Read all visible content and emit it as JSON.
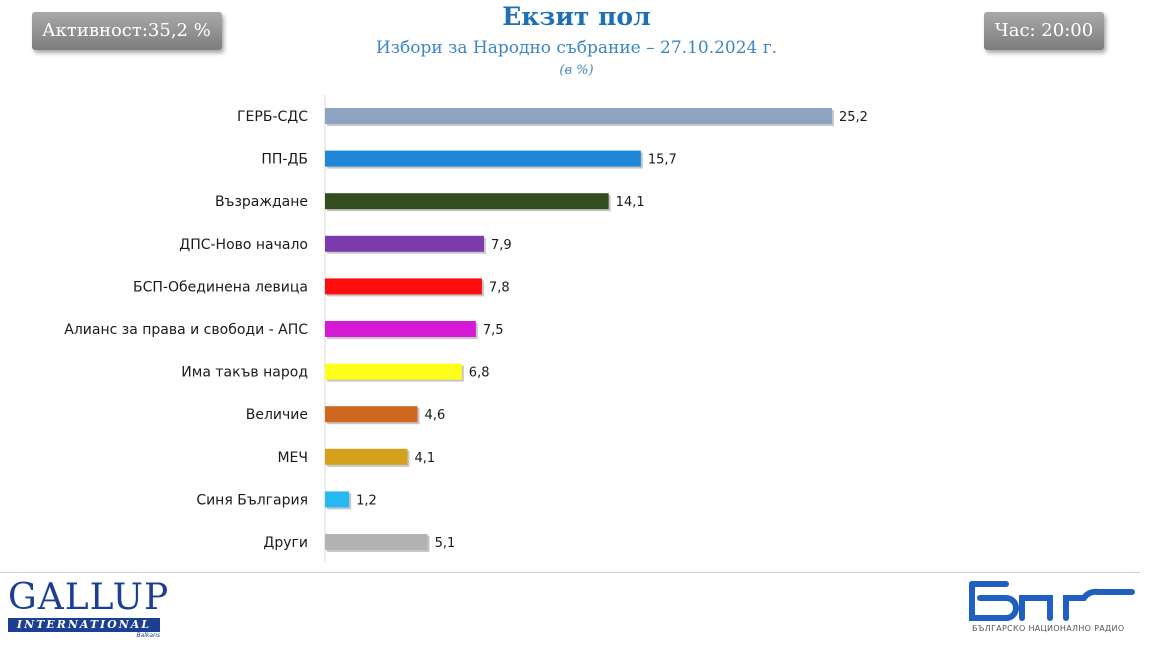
{
  "header": {
    "turnout": "Активност:35,2 %",
    "time": "Час: 20:00",
    "title": "Екзит пол",
    "subtitle": "Избори за Народно събрание – 27.10.2024 г.",
    "unit": "(в %)"
  },
  "logos": {
    "left_word": "GALLUP",
    "left_bar": "INTERNATIONAL",
    "left_small": "Balkans",
    "right_caption": "БЪЛГАРСКО НАЦИОНАЛНО РАДИО"
  },
  "chart_data": {
    "type": "bar",
    "orientation": "horizontal",
    "title": "Екзит пол",
    "subtitle": "Избори за Народно събрание – 27.10.2024 г.",
    "unit": "(в %)",
    "categories": [
      "ГЕРБ-СДС",
      "ПП-ДБ",
      "Възраждане",
      "ДПС-Ново начало",
      "БСП-Обединена левица",
      "Алианс за права и свободи - АПС",
      "Има такъв народ",
      "Величие",
      "МЕЧ",
      "Синя България",
      "Други"
    ],
    "values": [
      25.2,
      15.7,
      14.1,
      7.9,
      7.8,
      7.5,
      6.8,
      4.6,
      4.1,
      1.2,
      5.1
    ],
    "value_labels": [
      "25,2",
      "15,7",
      "14,1",
      "7,9",
      "7,8",
      "7,5",
      "6,8",
      "4,6",
      "4,1",
      "1,2",
      "5,1"
    ],
    "colors": [
      "#8ea3c2",
      "#1f86d8",
      "#334d1f",
      "#7c3aad",
      "#ff0d0d",
      "#d41ad4",
      "#ffff1a",
      "#cf6820",
      "#d6a11a",
      "#27b8f2",
      "#b3b3b3"
    ],
    "xlim": [
      0,
      25.2
    ],
    "grid": false,
    "legend": "none"
  }
}
